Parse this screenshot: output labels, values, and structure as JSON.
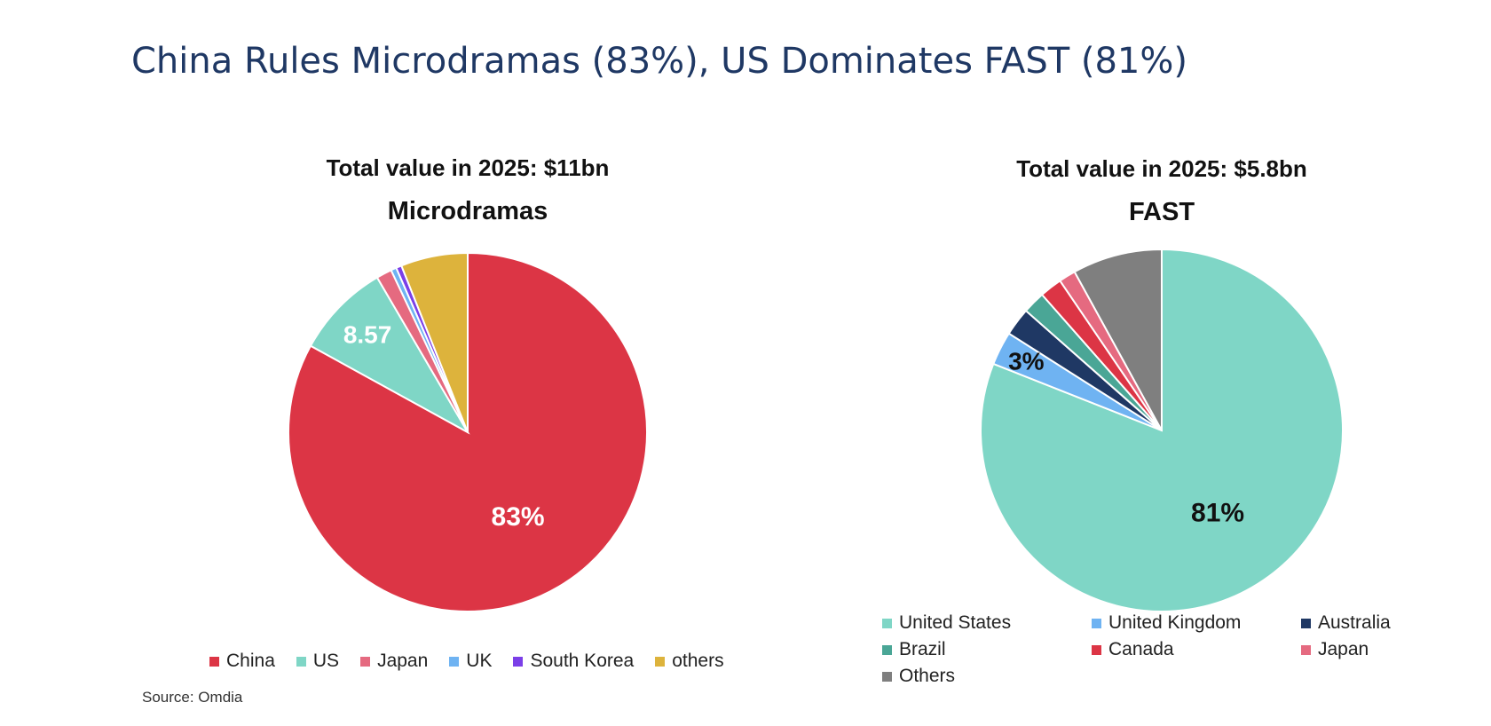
{
  "title": "China Rules Microdramas (83%), US Dominates FAST (81%)",
  "source": "Source: Omdia",
  "chart_data": [
    {
      "type": "pie",
      "subtitle": "Total value in 2025: $11bn",
      "title": "Microdramas",
      "categories": [
        "China",
        "US",
        "Japan",
        "UK",
        "South Korea",
        "others"
      ],
      "values": [
        83,
        8.57,
        1.4,
        0.5,
        0.5,
        6.03
      ],
      "colors": [
        "#dc3545",
        "#7fd6c6",
        "#e56a80",
        "#6fb3f2",
        "#7b3fe8",
        "#ddb33c"
      ],
      "data_labels": [
        {
          "category": "China",
          "text": "83%",
          "color": "#ffffff"
        },
        {
          "category": "US",
          "text": "8.57",
          "color": "#ffffff"
        }
      ],
      "legend_position": "bottom"
    },
    {
      "type": "pie",
      "subtitle": "Total value in 2025: $5.8bn",
      "title": "FAST",
      "categories": [
        "United States",
        "United Kingdom",
        "Australia",
        "Brazil",
        "Canada",
        "Japan",
        "Others"
      ],
      "values": [
        81,
        3,
        2.5,
        2,
        2,
        1.5,
        8
      ],
      "colors": [
        "#7fd6c6",
        "#6fb3f2",
        "#1f3864",
        "#4aa696",
        "#dc3545",
        "#e56a80",
        "#7f7f7f"
      ],
      "data_labels": [
        {
          "category": "United States",
          "text": "81%",
          "color": "#111111"
        },
        {
          "category": "United Kingdom",
          "text": "3%",
          "color": "#111111"
        }
      ],
      "legend_position": "bottom"
    }
  ]
}
